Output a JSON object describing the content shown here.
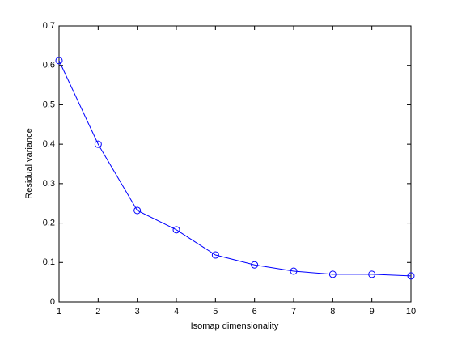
{
  "chart_data": {
    "type": "line",
    "x_label": "Isomap dimensionality",
    "y_label": "Residual variance",
    "x": [
      1,
      2,
      3,
      4,
      5,
      6,
      7,
      8,
      9,
      10
    ],
    "series": [
      {
        "color": "#0000ff",
        "values": [
          0.612,
          0.4,
          0.232,
          0.183,
          0.119,
          0.094,
          0.078,
          0.07,
          0.07,
          0.066
        ]
      }
    ],
    "xlim": [
      1,
      10
    ],
    "xticks": [
      1,
      2,
      3,
      4,
      5,
      6,
      7,
      8,
      9,
      10
    ],
    "ylim": [
      0,
      0.7
    ],
    "yticks": [
      0,
      0.1,
      0.2,
      0.3,
      0.4,
      0.5,
      0.6,
      0.7
    ],
    "marker": "circle"
  }
}
